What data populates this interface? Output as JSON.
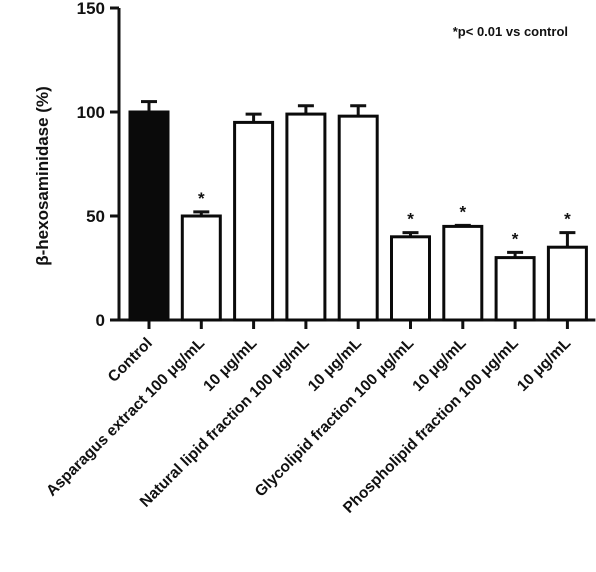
{
  "chart_data": {
    "type": "bar",
    "ylabel": "β-hexosaminidase (%)",
    "ylim": [
      0,
      150
    ],
    "yticks": [
      "0",
      "50",
      "100",
      "150"
    ],
    "annotation": "*p< 0.01 vs control",
    "categories": [
      "Control",
      "Asparagus extract 100 μg/mL",
      "10 μg/mL",
      "Natural lipid fraction 100 μg/mL",
      "10 μg/mL",
      "Glycolipid fraction 100 μg/mL",
      "10 μg/mL",
      "Phospholipid fraction 100 μg/mL",
      "10 μg/mL"
    ],
    "values": [
      100,
      50,
      95,
      99,
      98,
      40,
      45,
      30,
      35
    ],
    "errors": [
      5,
      2,
      4,
      4,
      5,
      2,
      0.5,
      2.5,
      7
    ],
    "significant": [
      false,
      true,
      false,
      false,
      false,
      true,
      true,
      true,
      true
    ],
    "significance_marker": "*",
    "bar_fills": [
      "#0a0a0a",
      "#ffffff",
      "#ffffff",
      "#ffffff",
      "#ffffff",
      "#ffffff",
      "#ffffff",
      "#ffffff",
      "#ffffff"
    ],
    "bar_stroke": "#0a0a0a",
    "grid": false,
    "legend": "none"
  }
}
